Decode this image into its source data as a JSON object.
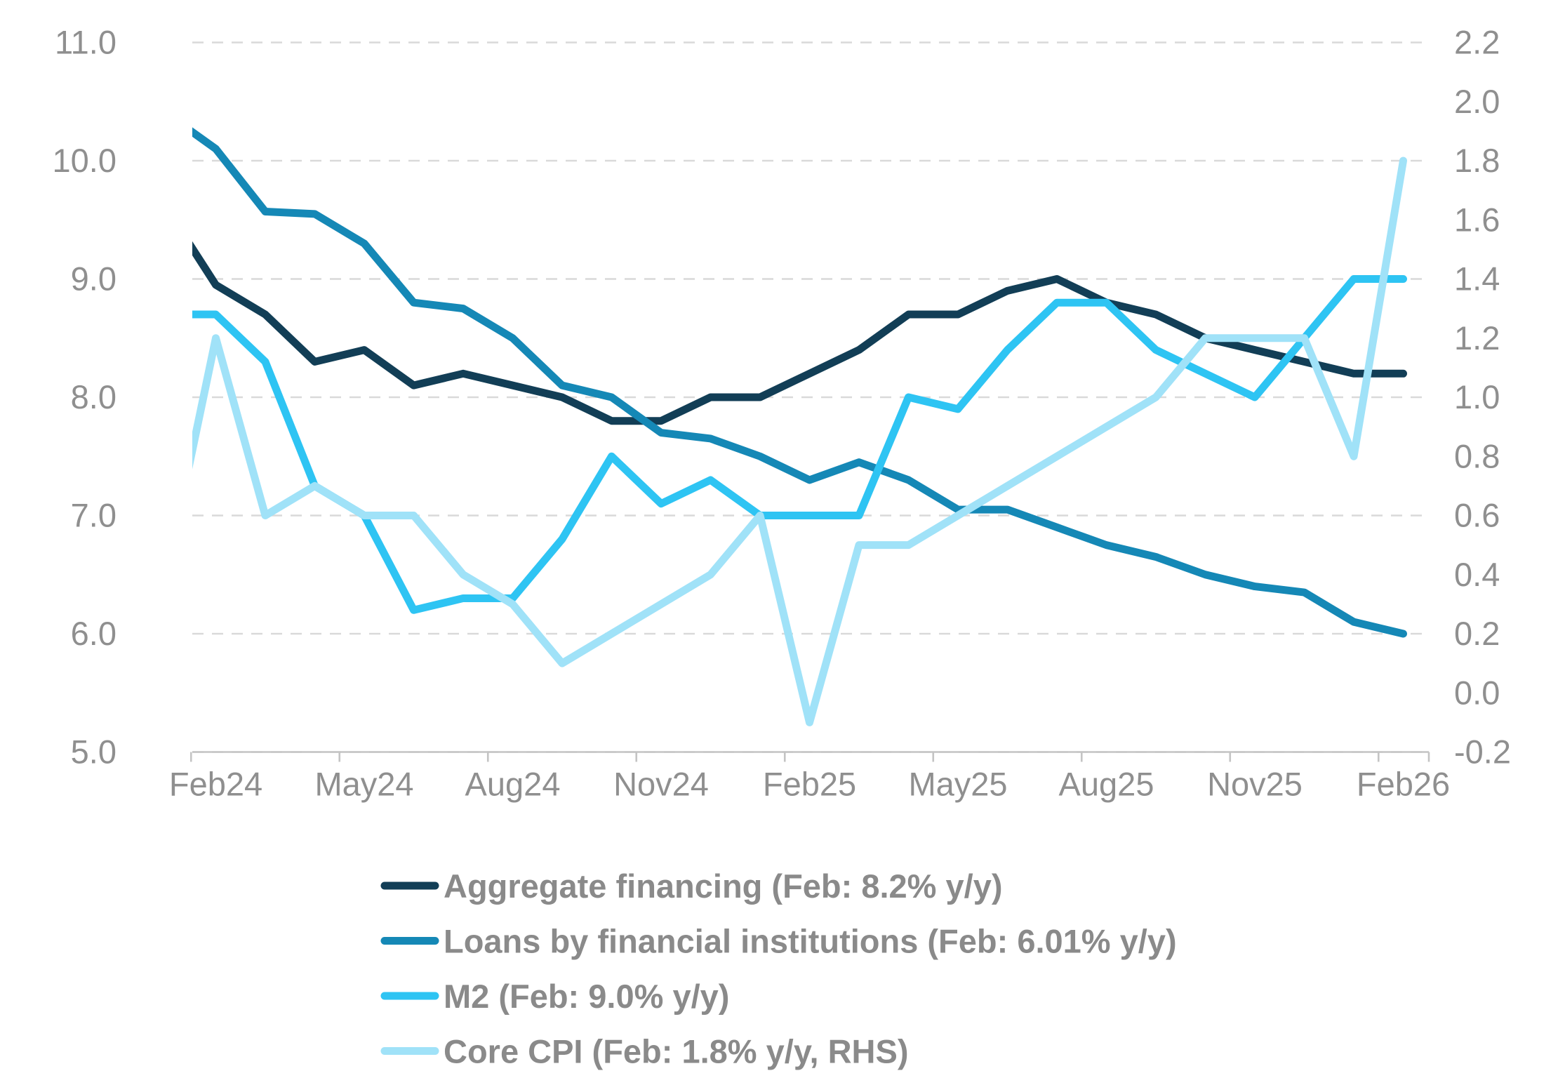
{
  "chart_data": {
    "type": "line",
    "title": "",
    "months": [
      "Feb24",
      "Mar24",
      "Apr24",
      "May24",
      "Jun24",
      "Jul24",
      "Aug24",
      "Sep24",
      "Oct24",
      "Nov24",
      "Dec24",
      "Jan25",
      "Feb25",
      "Mar25",
      "Apr25",
      "May25",
      "Jun25",
      "Jul25",
      "Aug25",
      "Sep25",
      "Oct25",
      "Nov25",
      "Dec25",
      "Jan26",
      "Feb26"
    ],
    "x_tick_labels": [
      "Feb24",
      "May24",
      "Aug24",
      "Nov24",
      "Feb25",
      "May25",
      "Aug25",
      "Nov25",
      "Feb26"
    ],
    "left_axis": {
      "min": 5.0,
      "max": 11.0,
      "tick_labels": [
        "11.0",
        "10.0",
        "9.0",
        "8.0",
        "7.0",
        "6.0",
        "5.0"
      ]
    },
    "right_axis": {
      "min": -0.2,
      "max": 2.2,
      "tick_labels": [
        "2.2",
        "2.0",
        "1.8",
        "1.6",
        "1.4",
        "1.2",
        "1.0",
        "0.8",
        "0.6",
        "0.4",
        "0.2",
        "0.0",
        "-0.2"
      ]
    },
    "grid": {
      "horizontal_dashed": true,
      "color": "#d9d9d9"
    },
    "axis_line_color": "#c4c4c4",
    "label_color": "#8f8f8f",
    "legend_text_color": "#8a8a8a",
    "legend_position": "bottom-left",
    "series": [
      {
        "name": "Aggregate financing (Feb: 8.2% y/y)",
        "axis": "left",
        "color": "#123e56",
        "lead_in_value_clipped_at_left_edge": 9.6,
        "values": [
          8.95,
          8.7,
          8.3,
          8.4,
          8.1,
          8.2,
          8.1,
          8.0,
          7.8,
          7.8,
          8.0,
          8.0,
          8.2,
          8.4,
          8.7,
          8.7,
          8.9,
          9.0,
          8.8,
          8.7,
          8.5,
          8.4,
          8.3,
          8.2,
          8.2
        ]
      },
      {
        "name": "Loans by financial institutions (Feb: 6.01% y/y)",
        "axis": "left",
        "color": "#1588b6",
        "lead_in_value_clipped_at_left_edge": 10.4,
        "values": [
          10.1,
          9.57,
          9.55,
          9.3,
          8.8,
          8.75,
          8.5,
          8.1,
          8.0,
          7.7,
          7.65,
          7.5,
          7.3,
          7.45,
          7.3,
          7.05,
          7.05,
          6.9,
          6.75,
          6.65,
          6.5,
          6.4,
          6.35,
          6.1,
          6.0
        ]
      },
      {
        "name": "M2 (Feb: 9.0% y/y)",
        "axis": "left",
        "color": "#2ec4f3",
        "lead_in_value_clipped_at_left_edge": 8.7,
        "values": [
          8.7,
          8.3,
          7.25,
          7.0,
          6.2,
          6.3,
          6.3,
          6.8,
          7.5,
          7.1,
          7.3,
          7.0,
          7.0,
          7.0,
          8.0,
          7.9,
          8.4,
          8.8,
          8.8,
          8.4,
          8.2,
          8.0,
          8.5,
          9.0,
          9.0
        ]
      },
      {
        "name": "Core CPI (Feb: 1.8% y/y, RHS)",
        "axis": "right",
        "color": "#a0e2f8",
        "lead_in_value_clipped_at_left_edge": 0.4,
        "values": [
          1.2,
          0.6,
          0.7,
          0.6,
          0.6,
          0.4,
          0.3,
          0.1,
          0.2,
          0.3,
          0.4,
          0.6,
          -0.1,
          0.5,
          0.5,
          0.6,
          0.7,
          0.8,
          0.9,
          1.0,
          1.2,
          1.2,
          1.2,
          0.8,
          1.8
        ]
      }
    ]
  }
}
